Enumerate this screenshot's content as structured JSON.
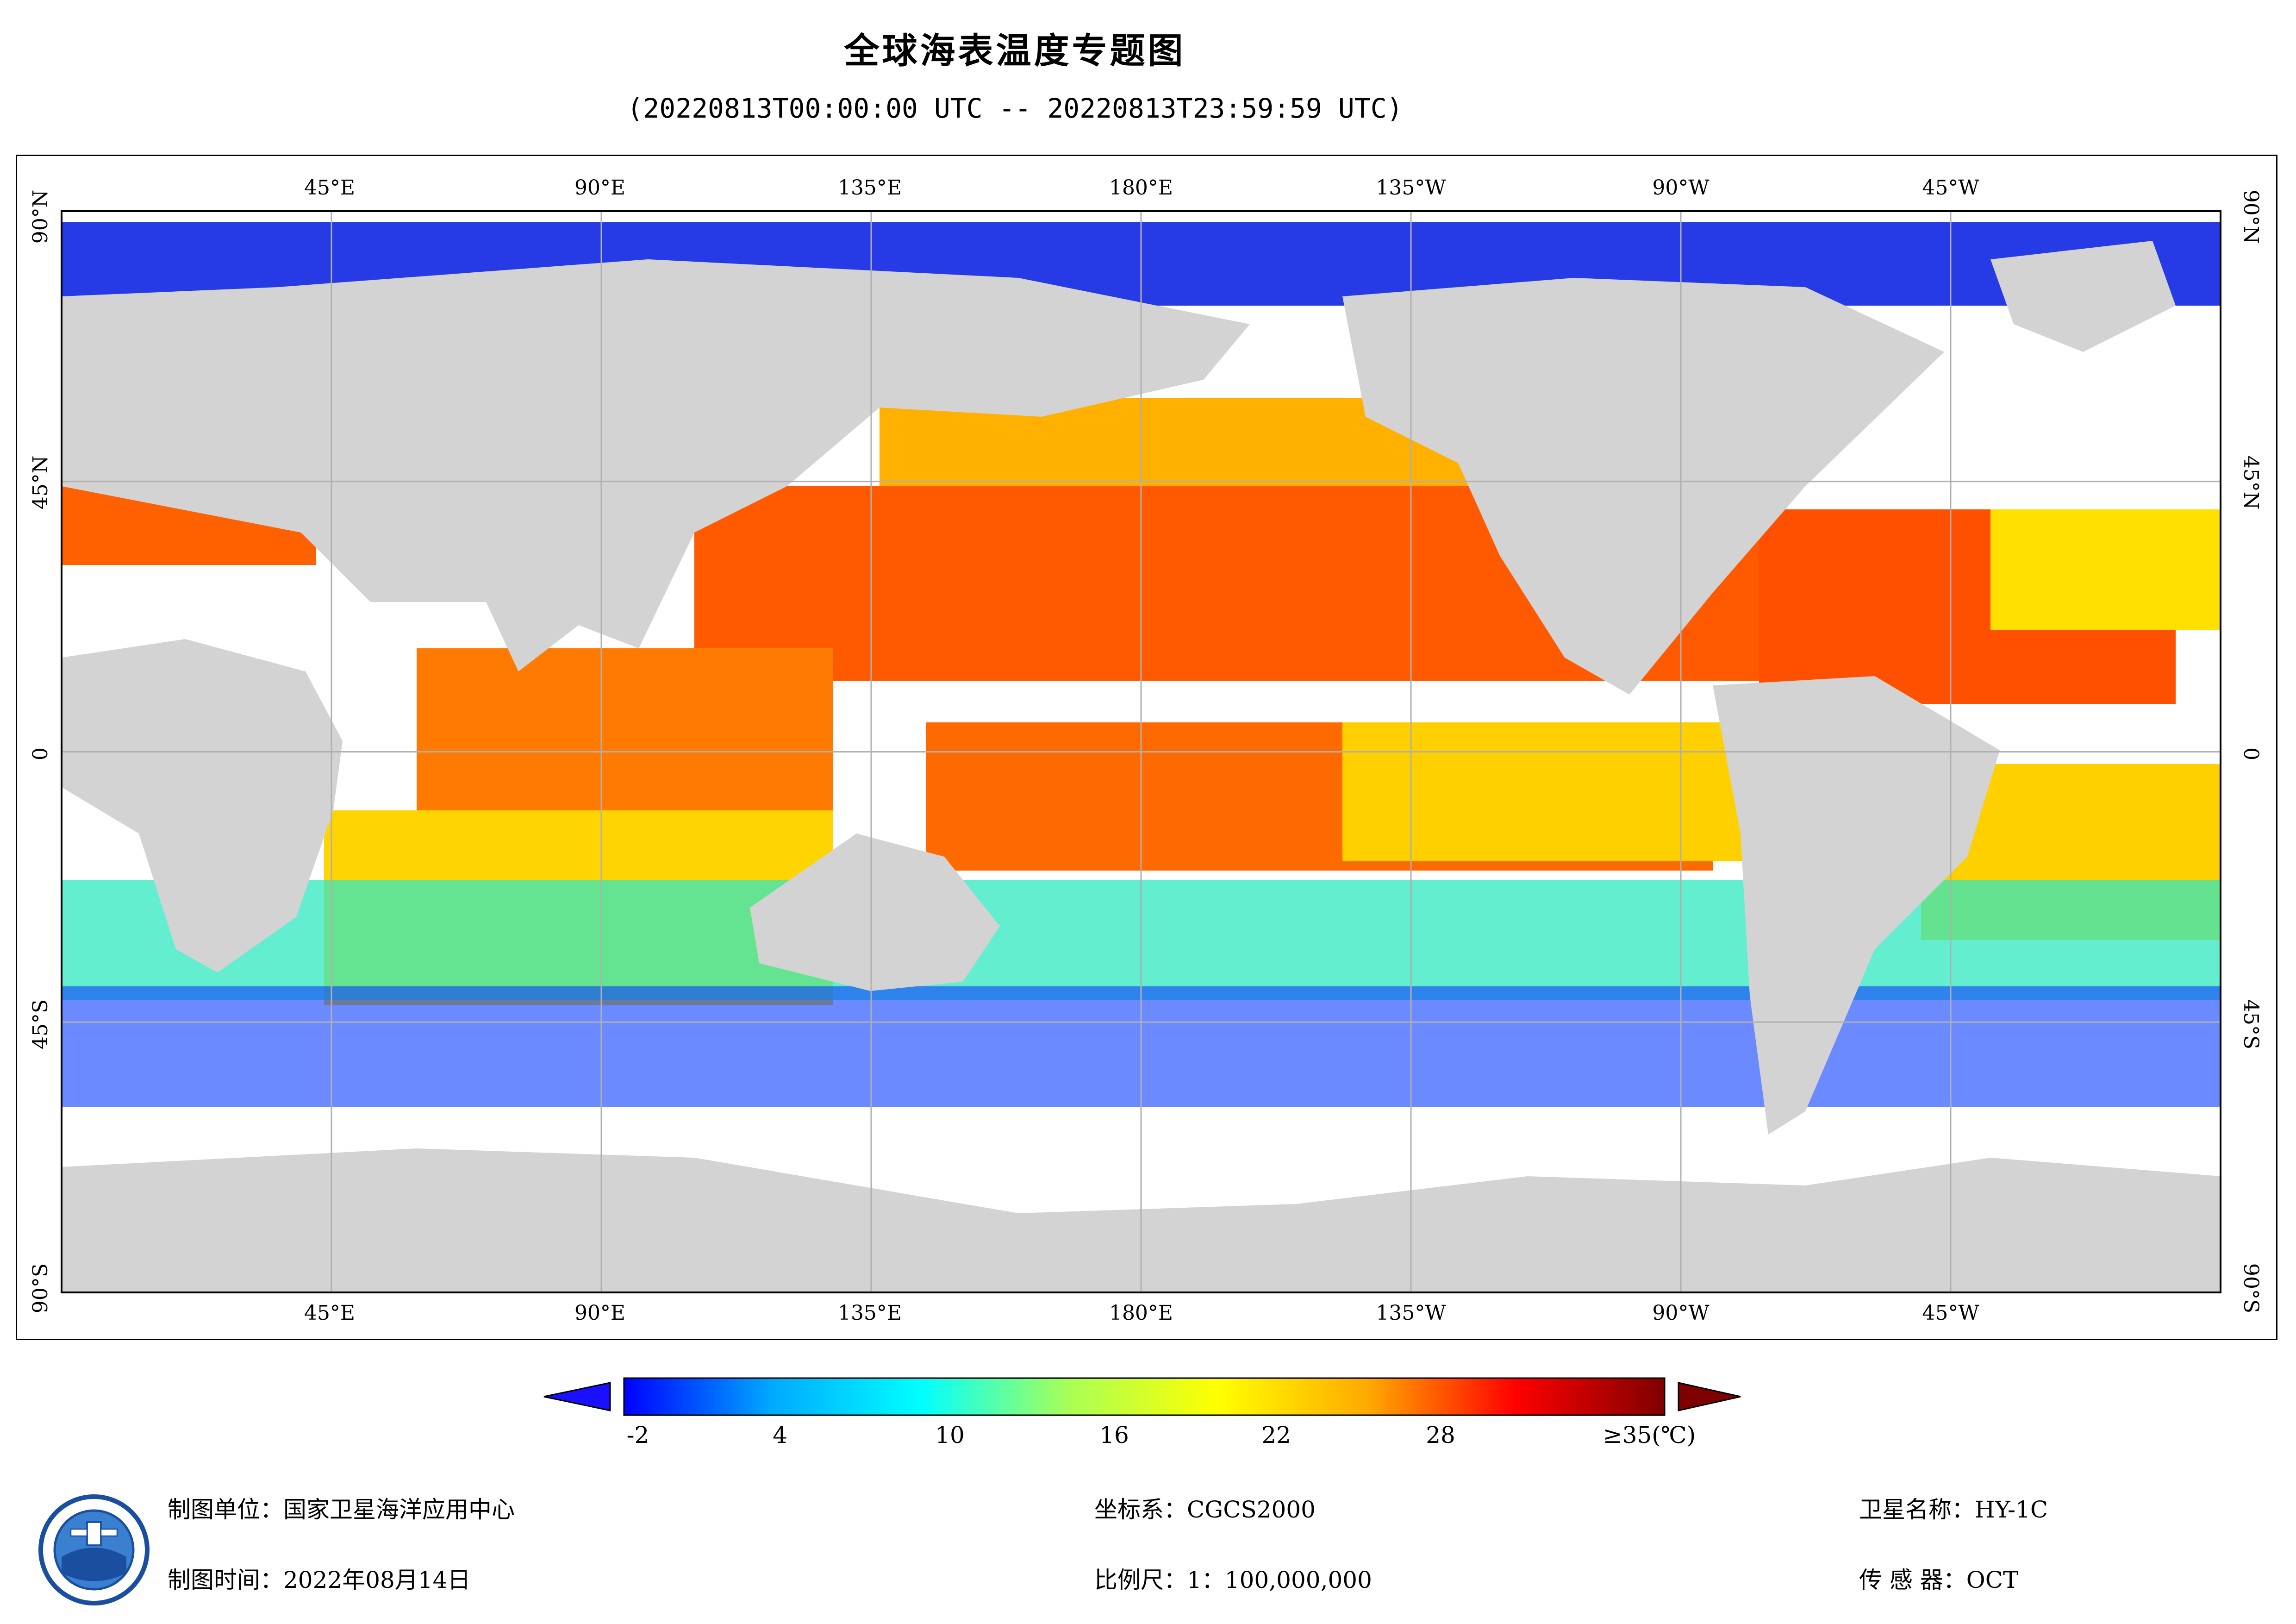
{
  "header": {
    "title": "全球海表温度专题图",
    "subtitle": "(20220813T00:00:00 UTC -- 20220813T23:59:59 UTC)"
  },
  "map": {
    "projection": "equirectangular",
    "lon_range": [
      -180,
      180
    ],
    "lat_range": [
      -90,
      90
    ],
    "top_labels": [
      "45°E",
      "90°E",
      "135°E",
      "180°E",
      "135°W",
      "90°W",
      "45°W"
    ],
    "bottom_labels": [
      "45°E",
      "90°E",
      "135°E",
      "180°E",
      "135°W",
      "90°W",
      "45°W"
    ],
    "left_labels": [
      "90°N",
      "45°N",
      "0",
      "45°S",
      "90°S"
    ],
    "right_labels": [
      "90°N",
      "45°N",
      "0",
      "45°S",
      "90°S"
    ],
    "land_color": "#d3d3d3",
    "no_data_color": "#ffffff",
    "grid_color": "#b0b0b0"
  },
  "colorbar": {
    "min": -2,
    "max": 35,
    "unit": "℃",
    "ticks": [
      "-2",
      "4",
      "10",
      "16",
      "22",
      "28",
      "≥35(℃)"
    ],
    "colors": [
      "#0000ff",
      "#00aaff",
      "#00ffff",
      "#aaff55",
      "#ffff00",
      "#ffaa00",
      "#ff0000",
      "#7f0000"
    ]
  },
  "footer": {
    "producer_label": "制图单位：",
    "producer_value": "国家卫星海洋应用中心",
    "date_label": "制图时间：",
    "date_value": "2022年08月14日",
    "crs_label": "坐标系：",
    "crs_value": "CGCS2000",
    "scale_label": "比例尺：",
    "scale_value": "1：100,000,000",
    "satellite_label": "卫星名称：",
    "satellite_value": "HY-1C",
    "sensor_label": "传 感 器：",
    "sensor_value": "OCT"
  }
}
